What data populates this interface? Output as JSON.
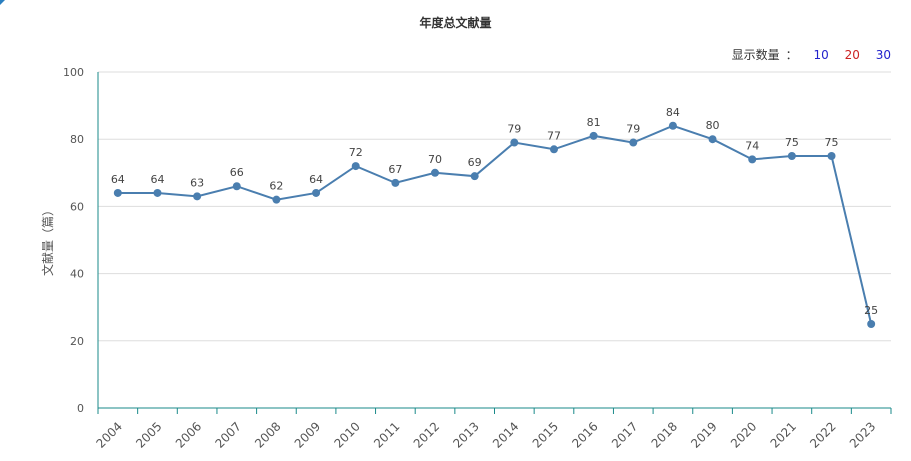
{
  "colors": {
    "series": "#4a7eaf",
    "axis": "#1a8a8a",
    "grid": "#dddddd",
    "opt_blue": "#2222cc",
    "opt_red": "#cc2222"
  },
  "display_count": {
    "label": "显示数量",
    "separator": "：",
    "options": [
      {
        "label": "10",
        "color": "#2222cc"
      },
      {
        "label": "20",
        "color": "#cc2222"
      },
      {
        "label": "30",
        "color": "#2222cc"
      }
    ]
  },
  "chart_data": {
    "type": "line",
    "title": "年度总文献量",
    "xlabel": "",
    "ylabel": "文献量（篇）",
    "ylim": [
      0,
      100
    ],
    "yticks": [
      0,
      20,
      40,
      60,
      80,
      100
    ],
    "grid": true,
    "categories": [
      "2004",
      "2005",
      "2006",
      "2007",
      "2008",
      "2009",
      "2010",
      "2011",
      "2012",
      "2013",
      "2014",
      "2015",
      "2016",
      "2017",
      "2018",
      "2019",
      "2020",
      "2021",
      "2022",
      "2023"
    ],
    "series": [
      {
        "values": [
          64,
          64,
          63,
          66,
          62,
          64,
          72,
          67,
          70,
          69,
          79,
          77,
          81,
          79,
          84,
          80,
          74,
          75,
          75,
          25
        ]
      }
    ]
  }
}
